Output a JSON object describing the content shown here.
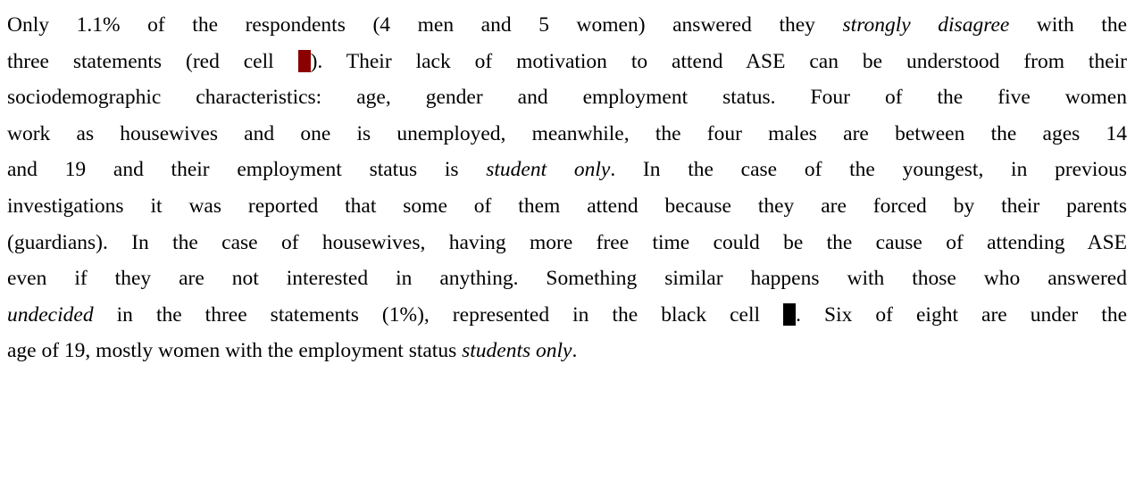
{
  "paragraph": {
    "lines": [
      [
        {
          "text": "Only 1.1% of the respondents (4 men and 5 women) answered they",
          "style": "normal"
        },
        {
          "text": "strongly disagree",
          "style": "italic"
        },
        {
          "text": "with the",
          "style": "normal"
        }
      ],
      [
        {
          "text": "three statements (red cell",
          "style": "normal"
        },
        {
          "text": "). Their lack of motivation to attend ASE can be understood from their",
          "style": "normal"
        }
      ],
      [
        {
          "text": "sociodemographic characteristics: age, gender and employment status. Four of the five women",
          "style": "normal"
        }
      ],
      [
        {
          "text": "work as housewives and one is unemployed, meanwhile, the four males are between the ages 14",
          "style": "normal"
        }
      ],
      [
        {
          "text": "and 19 and their employment status is",
          "style": "normal"
        },
        {
          "text": "student only",
          "style": "italic"
        },
        {
          "text": ". In the case of the youngest, in previous",
          "style": "normal"
        }
      ],
      [
        {
          "text": "investigations it was reported that some of them attend because they are forced by their parents",
          "style": "normal"
        }
      ],
      [
        {
          "text": "(guardians). In the case of housewives, having more free time could be the cause of attending ASE",
          "style": "normal"
        }
      ],
      [
        {
          "text": "even if they are not interested in anything. Something similar happens with those who answered",
          "style": "normal"
        }
      ],
      [
        {
          "text": "undecided",
          "style": "italic"
        },
        {
          "text": "in the three statements (1%), represented in the black cell",
          "style": "normal"
        },
        {
          "text": ". Six of eight are under the",
          "style": "normal"
        }
      ],
      [
        {
          "text": "age of 19, mostly women with the employment status",
          "style": "normal"
        },
        {
          "text": "students only",
          "style": "italic"
        },
        {
          "text": ".",
          "style": "normal"
        }
      ]
    ]
  }
}
